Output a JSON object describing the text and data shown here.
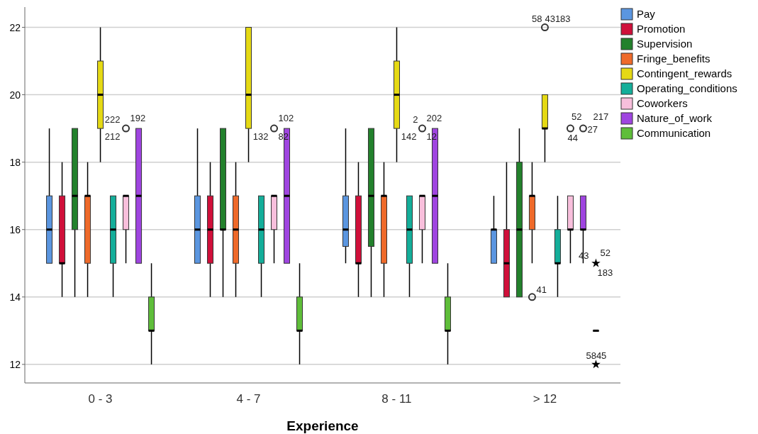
{
  "chart_data": {
    "type": "box",
    "xlabel": "Experience",
    "categories": [
      "0 - 3",
      "4 - 7",
      "8 - 11",
      "> 12"
    ],
    "ylim": [
      11.45,
      22.6
    ],
    "yticks": [
      12,
      14,
      16,
      18,
      20,
      22
    ],
    "grid": "y",
    "legend": "top right",
    "series": [
      {
        "name": "Pay",
        "color": "#5b96e0",
        "boxes": [
          {
            "low": 15,
            "q1": 15,
            "median": 16,
            "q3": 17,
            "high": 19
          },
          {
            "low": 15,
            "q1": 15,
            "median": 16,
            "q3": 17,
            "high": 19
          },
          {
            "low": 15,
            "q1": 15.5,
            "median": 16,
            "q3": 17,
            "high": 19
          },
          {
            "low": 15,
            "q1": 15,
            "median": 16,
            "q3": 16,
            "high": 17
          }
        ]
      },
      {
        "name": "Promotion",
        "color": "#d0103a",
        "boxes": [
          {
            "low": 14,
            "q1": 15,
            "median": 15,
            "q3": 17,
            "high": 18
          },
          {
            "low": 14,
            "q1": 15,
            "median": 16,
            "q3": 17,
            "high": 18
          },
          {
            "low": 14,
            "q1": 15,
            "median": 15,
            "q3": 17,
            "high": 18
          },
          {
            "low": 14,
            "q1": 14,
            "median": 15,
            "q3": 16,
            "high": 18
          }
        ]
      },
      {
        "name": "Supervision",
        "color": "#23812c",
        "boxes": [
          {
            "low": 14,
            "q1": 16,
            "median": 17,
            "q3": 19,
            "high": 19
          },
          {
            "low": 14,
            "q1": 16,
            "median": 16,
            "q3": 19,
            "high": 19
          },
          {
            "low": 14,
            "q1": 15.5,
            "median": 17,
            "q3": 19,
            "high": 19
          },
          {
            "low": 14,
            "q1": 14,
            "median": 16,
            "q3": 18,
            "high": 19
          }
        ]
      },
      {
        "name": "Fringe_benefits",
        "color": "#ef6a2a",
        "boxes": [
          {
            "low": 14,
            "q1": 15,
            "median": 17,
            "q3": 17,
            "high": 18
          },
          {
            "low": 14,
            "q1": 15,
            "median": 16,
            "q3": 17,
            "high": 18
          },
          {
            "low": 14,
            "q1": 15,
            "median": 17,
            "q3": 17,
            "high": 18
          },
          {
            "low": 15,
            "q1": 16,
            "median": 17,
            "q3": 17,
            "high": 18,
            "outliers": [
              14
            ]
          }
        ]
      },
      {
        "name": "Contingent_rewards",
        "color": "#e5d914",
        "boxes": [
          {
            "low": 18,
            "q1": 19,
            "median": 20,
            "q3": 21,
            "high": 22
          },
          {
            "low": 18,
            "q1": 19,
            "median": 20,
            "q3": 22,
            "high": 22
          },
          {
            "low": 18,
            "q1": 19,
            "median": 20,
            "q3": 21,
            "high": 22
          },
          {
            "low": 18,
            "q1": 19,
            "median": 19,
            "q3": 20,
            "high": 20,
            "outliers": [
              22
            ]
          }
        ]
      },
      {
        "name": "Operating_conditions",
        "color": "#14ae9a",
        "boxes": [
          {
            "low": 14,
            "q1": 15,
            "median": 16,
            "q3": 17,
            "high": 17
          },
          {
            "low": 14,
            "q1": 15,
            "median": 16,
            "q3": 17,
            "high": 17
          },
          {
            "low": 14,
            "q1": 15,
            "median": 16,
            "q3": 17,
            "high": 17
          },
          {
            "low": 14,
            "q1": 15,
            "median": 15,
            "q3": 16,
            "high": 17
          }
        ]
      },
      {
        "name": "Coworkers",
        "color": "#f8bfdc",
        "boxes": [
          {
            "low": 15,
            "q1": 16,
            "median": 17,
            "q3": 17,
            "high": 17,
            "outliers": [
              19
            ]
          },
          {
            "low": 15,
            "q1": 16,
            "median": 17,
            "q3": 17,
            "high": 17,
            "outliers": [
              19
            ]
          },
          {
            "low": 15,
            "q1": 16,
            "median": 17,
            "q3": 17,
            "high": 17,
            "outliers": [
              19
            ]
          },
          {
            "low": 15,
            "q1": 16,
            "median": 16,
            "q3": 17,
            "high": 17,
            "outliers": [
              19
            ]
          }
        ]
      },
      {
        "name": "Nature_of_work",
        "color": "#9f45e0",
        "boxes": [
          {
            "low": 15,
            "q1": 15,
            "median": 17,
            "q3": 19,
            "high": 19
          },
          {
            "low": 15,
            "q1": 15,
            "median": 17,
            "q3": 19,
            "high": 19
          },
          {
            "low": 15,
            "q1": 15,
            "median": 17,
            "q3": 19,
            "high": 19
          },
          {
            "low": 15,
            "q1": 16,
            "median": 16,
            "q3": 17,
            "high": 17,
            "outliers": [
              19
            ]
          }
        ]
      },
      {
        "name": "Communication",
        "color": "#5fbe3a",
        "boxes": [
          {
            "low": 12,
            "q1": 13,
            "median": 13,
            "q3": 14,
            "high": 15
          },
          {
            "low": 12,
            "q1": 13,
            "median": 13,
            "q3": 14,
            "high": 15
          },
          {
            "low": 12,
            "q1": 13,
            "median": 13,
            "q3": 14,
            "high": 15
          },
          {
            "low": 13,
            "q1": 13,
            "median": 13,
            "q3": 13,
            "high": 13,
            "outliers": [
              15,
              12
            ]
          }
        ]
      }
    ],
    "annotations": [
      "222",
      "192",
      "212",
      "102",
      "132",
      "82",
      "2",
      "202",
      "142",
      "12",
      "58",
      "43183",
      "52",
      "217",
      "44",
      "27",
      "41",
      "43",
      "52",
      "183",
      "5845"
    ]
  }
}
